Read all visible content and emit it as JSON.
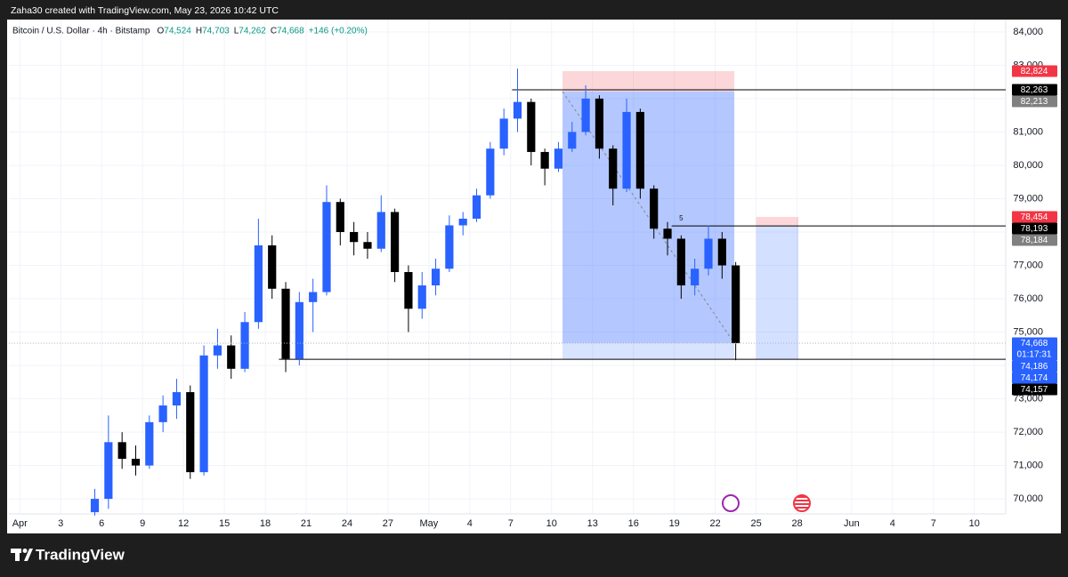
{
  "header": "Zaha30 created with TradingView.com, May 23, 2026 10:42 UTC",
  "footer": "TradingView",
  "chart_data": {
    "type": "candlestick",
    "symbol": "Bitcoin / U.S. Dollar · 4h · Bitstamp",
    "ohlc_legend": [
      {
        "key": "O",
        "value": "74,524"
      },
      {
        "key": "H",
        "value": "74,703"
      },
      {
        "key": "L",
        "value": "74,262"
      },
      {
        "key": "C",
        "value": "74,668"
      }
    ],
    "change": "+146 (+0.20%)",
    "x": [
      5,
      6,
      7,
      8,
      9,
      10,
      11,
      12,
      13,
      14,
      15,
      16,
      17,
      18,
      19,
      20,
      21,
      22,
      23,
      24,
      25,
      26,
      27,
      28,
      29,
      30,
      31,
      32,
      33,
      34,
      35,
      36,
      37,
      38,
      39,
      40,
      41,
      42,
      43,
      44,
      45,
      46,
      47,
      48,
      49,
      50,
      51,
      52
    ],
    "open": [
      69600,
      70000,
      71700,
      71200,
      71000,
      72300,
      72800,
      73200,
      70800,
      74300,
      74600,
      73900,
      75300,
      77600,
      76300,
      74200,
      75900,
      76200,
      78900,
      78000,
      77700,
      77500,
      78600,
      76800,
      75700,
      76400,
      76900,
      78200,
      78400,
      79100,
      80500,
      81400,
      81900,
      80400,
      79900,
      80500,
      81000,
      82000,
      80500,
      79300,
      81600,
      79300,
      78100,
      77800,
      76400,
      76900,
      77800,
      77000
    ],
    "high": [
      70300,
      72500,
      72000,
      71600,
      72500,
      73100,
      73600,
      73400,
      74600,
      75100,
      74900,
      75600,
      78400,
      77900,
      76500,
      76200,
      76600,
      79400,
      79000,
      78300,
      78000,
      79100,
      78700,
      77000,
      76800,
      77200,
      78500,
      78600,
      79300,
      80700,
      81700,
      82900,
      82000,
      80500,
      80700,
      81300,
      82400,
      82100,
      80600,
      82000,
      81700,
      79400,
      78300,
      77900,
      77200,
      78200,
      78000,
      77100
    ],
    "low": [
      69500,
      69700,
      70900,
      70700,
      70900,
      72000,
      72400,
      70600,
      70700,
      73900,
      73600,
      73800,
      75100,
      76000,
      73800,
      74000,
      75000,
      76100,
      77600,
      77300,
      77200,
      77400,
      76500,
      75000,
      75400,
      76100,
      76800,
      77900,
      78300,
      79000,
      80300,
      81000,
      80000,
      79400,
      79800,
      80400,
      80900,
      80200,
      78800,
      79200,
      79000,
      77800,
      77300,
      76000,
      76100,
      76700,
      76600,
      74157
    ],
    "close": [
      70000,
      71700,
      71200,
      71000,
      72300,
      72800,
      73200,
      70800,
      74300,
      74600,
      73900,
      75300,
      77600,
      76300,
      74200,
      75900,
      76200,
      78900,
      78000,
      77700,
      77500,
      78600,
      76800,
      75700,
      76400,
      76900,
      78200,
      78400,
      79100,
      80500,
      81400,
      81900,
      80400,
      79900,
      80500,
      81000,
      82000,
      80500,
      79300,
      81600,
      79300,
      78100,
      77800,
      76400,
      76900,
      77800,
      77000,
      74668
    ],
    "up_color": "#2962ff",
    "down_color": "#000000",
    "xlim": [
      -0.8,
      72.3
    ],
    "xticks": [
      {
        "value": 0,
        "label": "Apr"
      },
      3,
      6,
      9,
      12,
      15,
      18,
      21,
      24,
      27,
      {
        "value": 30,
        "label": "May"
      },
      {
        "value": 33,
        "label": "4"
      },
      {
        "value": 36,
        "label": "7"
      },
      {
        "value": 39,
        "label": "10"
      },
      {
        "value": 42,
        "label": "13"
      },
      {
        "value": 45,
        "label": "16"
      },
      {
        "value": 48,
        "label": "19"
      },
      {
        "value": 51,
        "label": "22"
      },
      {
        "value": 54,
        "label": "25"
      },
      {
        "value": 57,
        "label": "28"
      },
      {
        "value": 61,
        "label": "Jun"
      },
      {
        "value": 64,
        "label": "4"
      },
      {
        "value": 67,
        "label": "7"
      },
      {
        "value": 70,
        "label": "10"
      }
    ],
    "ylim": [
      69550,
      84370
    ],
    "yticks": [
      {
        "value": 70000,
        "label": "70,000"
      },
      {
        "value": 71000,
        "label": "71,000"
      },
      {
        "value": 72000,
        "label": "72,000"
      },
      {
        "value": 73000,
        "label": "73,000"
      },
      {
        "value": 74000,
        "label": "74,000"
      },
      {
        "value": 75000,
        "label": "75,000"
      },
      {
        "value": 76000,
        "label": "76,000"
      },
      {
        "value": 77000,
        "label": "77,000"
      },
      {
        "value": 78000,
        "label": "78,000"
      },
      {
        "value": 79000,
        "label": "79,000"
      },
      {
        "value": 80000,
        "label": "80,000"
      },
      {
        "value": 81000,
        "label": "81,000"
      },
      {
        "value": 82000,
        "label": "82,000"
      },
      {
        "value": 83000,
        "label": "83,000"
      },
      {
        "value": 84000,
        "label": "84,000"
      }
    ],
    "grid": true,
    "levels": [
      {
        "value": 82263,
        "from": 36.1
      },
      {
        "value": 78184,
        "from": 47.8
      },
      {
        "value": 74186,
        "from": 19.0
      }
    ],
    "positions": [
      {
        "x0": 39.8,
        "x1": 52.4,
        "stop": 82824,
        "entry": 82213,
        "target": 74186,
        "current": 74668
      },
      {
        "x0": 54.0,
        "x1": 57.1,
        "stop": 78454,
        "entry": 78193,
        "target": 74186
      }
    ],
    "note": "5",
    "price_labels": [
      {
        "value": 82824,
        "label": "82,824",
        "color": "#f23645"
      },
      {
        "value": 82263,
        "label": "82,263",
        "color": "#000000"
      },
      {
        "value": 82213,
        "label": "82,213",
        "color": "#808080"
      },
      {
        "value": 78454,
        "label": "78,454",
        "color": "#f23645"
      },
      {
        "value": 78193,
        "label": "78,193",
        "color": "#000000"
      },
      {
        "value": 78184,
        "label": "78,184",
        "color": "#808080"
      },
      {
        "value": 74668,
        "label": "74,668",
        "sublabel": "01:17:31",
        "color": "#2962ff"
      },
      {
        "value": 74186,
        "label": "74,186",
        "color": "#2962ff"
      },
      {
        "value": 74174,
        "label": "74,174",
        "color": "#2962ff"
      },
      {
        "value": 74157,
        "label": "74,157",
        "color": "#000000"
      }
    ]
  }
}
